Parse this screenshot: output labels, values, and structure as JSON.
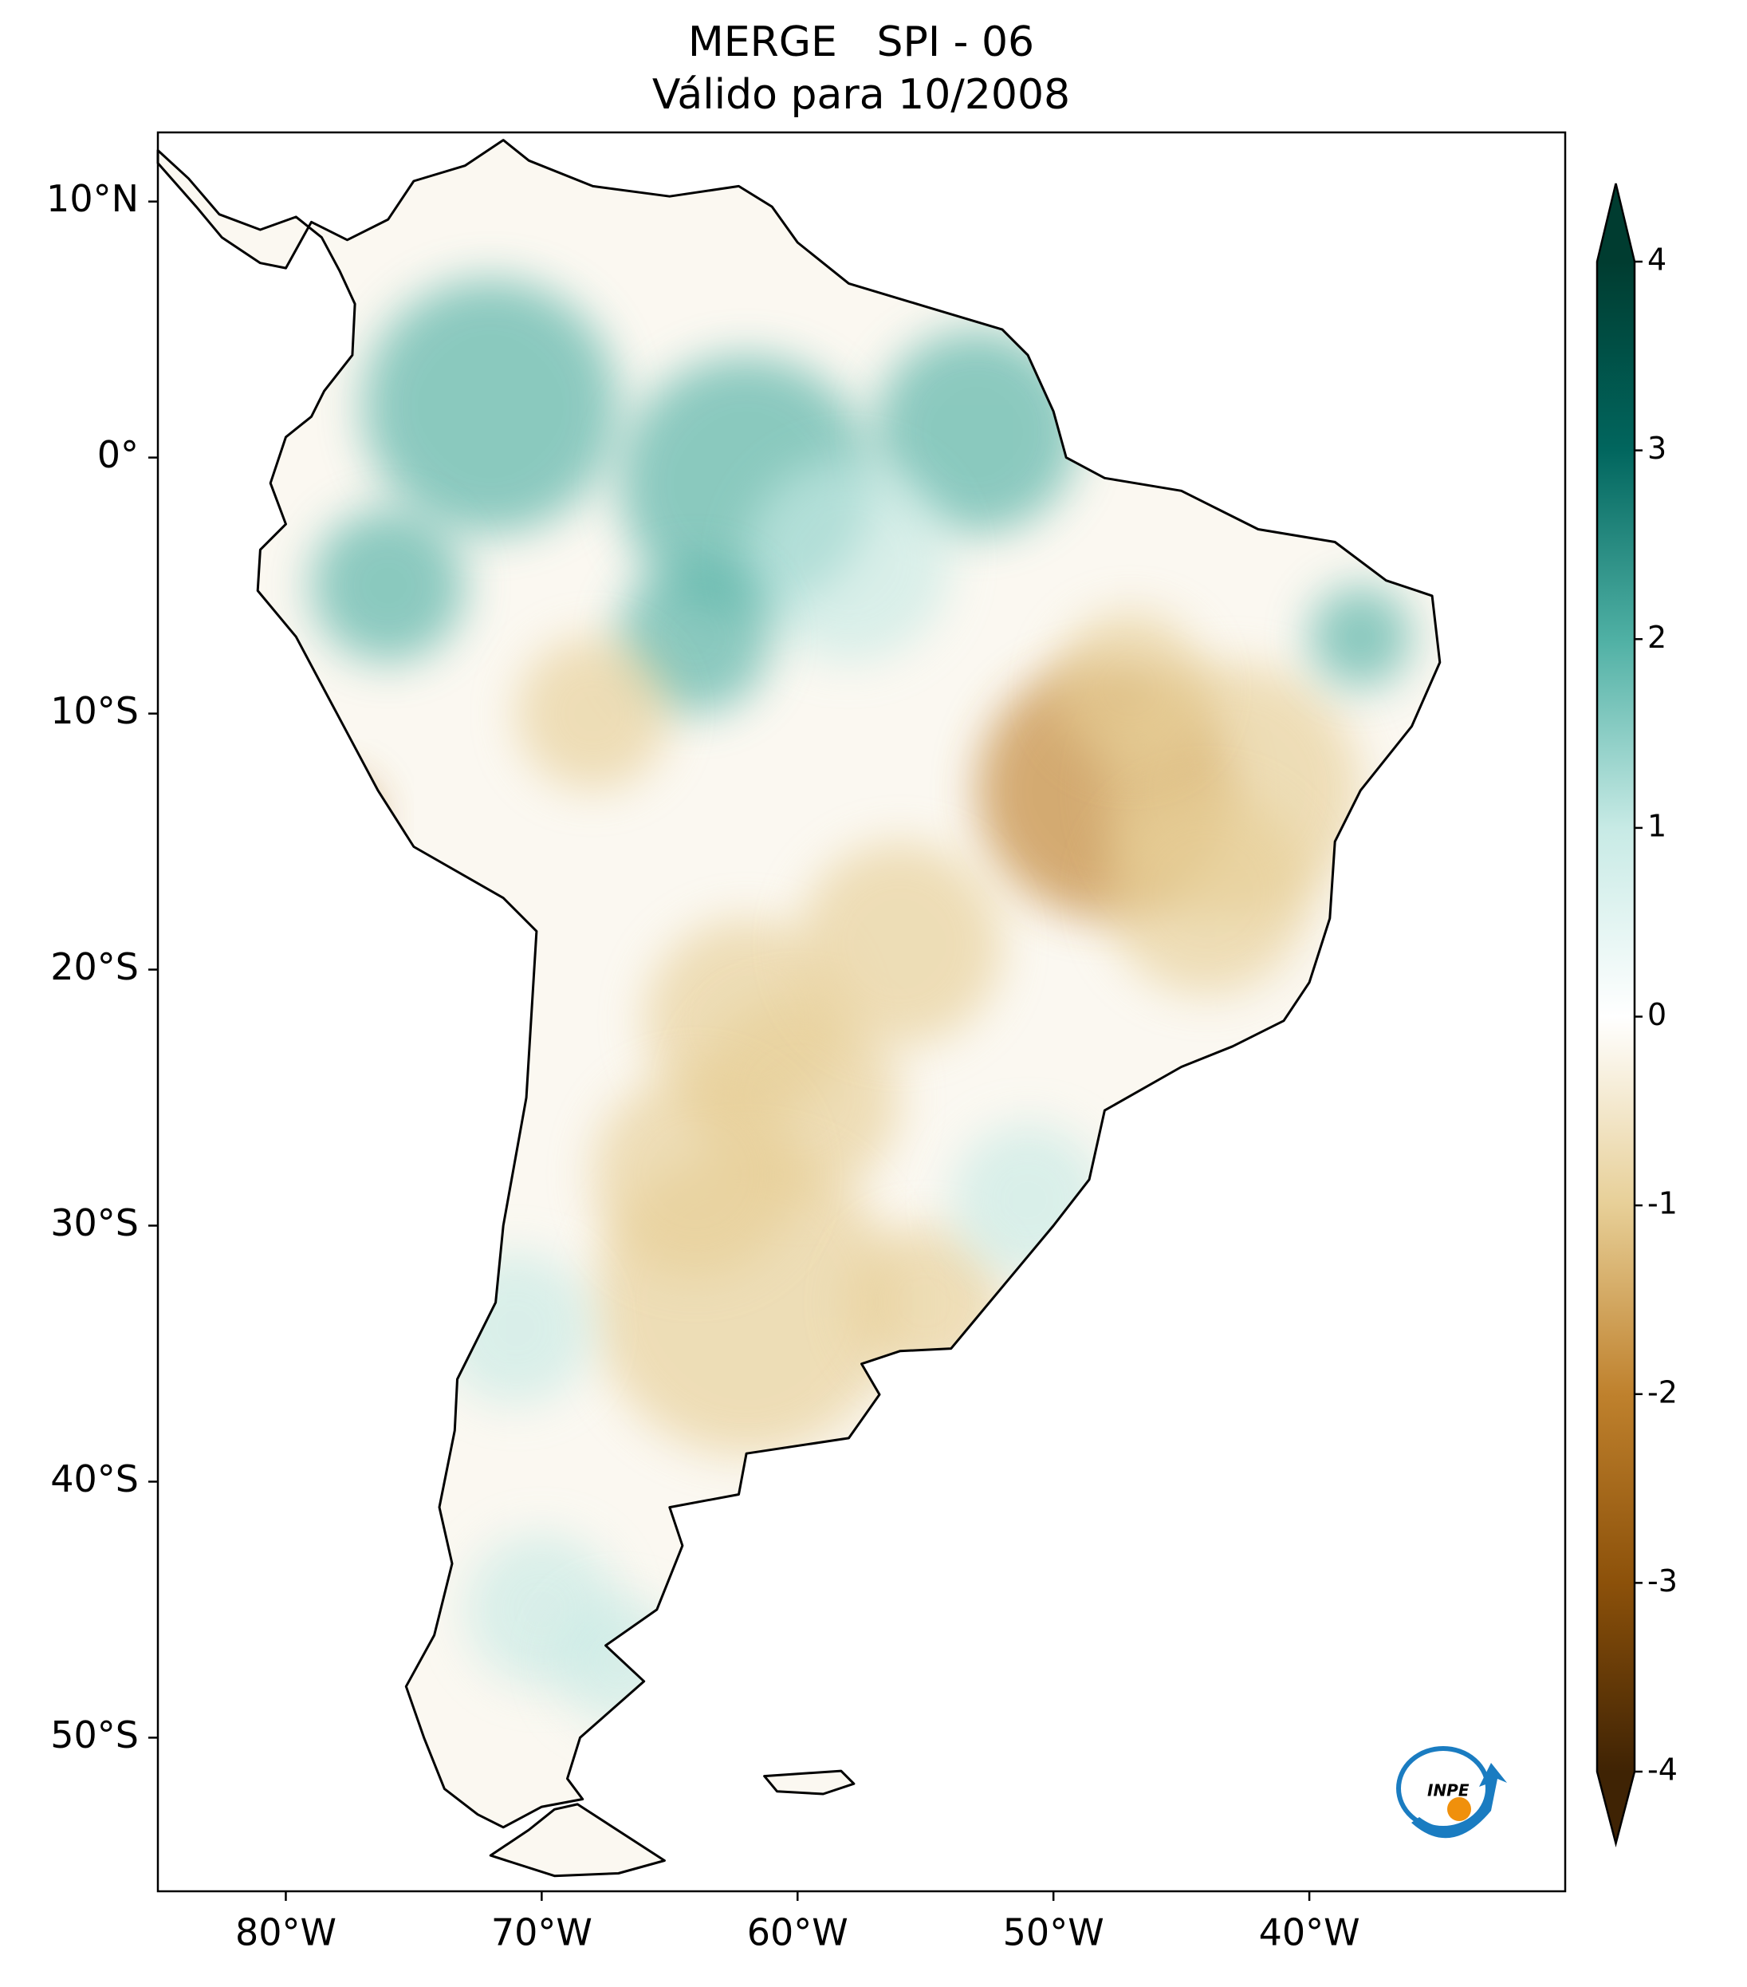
{
  "chart_data": {
    "type": "map",
    "title": "MERGE   SPI - 06",
    "subtitle": "Válido para 10/2008",
    "xlim": [
      -85,
      -30
    ],
    "ylim": [
      -56,
      12.7
    ],
    "xticks": [
      {
        "value": -80,
        "label": "80°W"
      },
      {
        "value": -70,
        "label": "70°W"
      },
      {
        "value": -60,
        "label": "60°W"
      },
      {
        "value": -50,
        "label": "50°W"
      },
      {
        "value": -40,
        "label": "40°W"
      }
    ],
    "yticks": [
      {
        "value": 10,
        "label": "10°N"
      },
      {
        "value": 0,
        "label": "0°"
      },
      {
        "value": -10,
        "label": "10°S"
      },
      {
        "value": -20,
        "label": "20°S"
      },
      {
        "value": -30,
        "label": "30°S"
      },
      {
        "value": -40,
        "label": "40°S"
      },
      {
        "value": -50,
        "label": "50°S"
      }
    ],
    "colorbar": {
      "lim": [
        -4,
        4
      ],
      "ticks": [
        4,
        3,
        2,
        1,
        0,
        -1,
        -2,
        -3,
        -4
      ],
      "colors": [
        "#3f2304",
        "#8c510a",
        "#bf812d",
        "#e7cf97",
        "#ffffff",
        "#c7eae5",
        "#4fb0a4",
        "#01665e",
        "#003c30"
      ],
      "extend": "both"
    },
    "logo": "INPE"
  }
}
